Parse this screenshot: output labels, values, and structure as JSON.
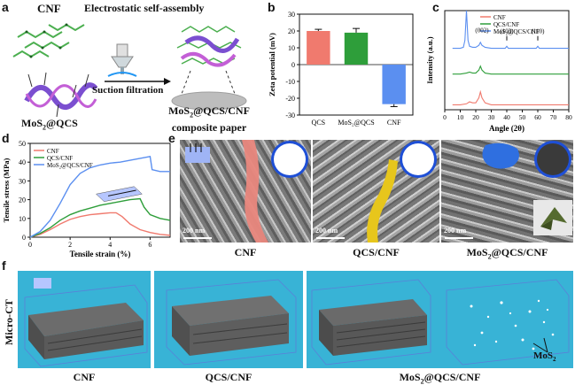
{
  "panels": {
    "a": {
      "label": "a",
      "cnf_label": "CNF",
      "title": "Electrostatic self-assembly",
      "process": "Suction filtration",
      "mos2_label_main": "MoS",
      "mos2_label_sub": "2",
      "mos2_label_tail": "@QCS",
      "product_line1_main": "MoS",
      "product_line1_sub": "2",
      "product_line1_tail": "@QCS/CNF",
      "product_line2": "composite paper"
    },
    "b": {
      "label": "b"
    },
    "c": {
      "label": "c"
    },
    "d": {
      "label": "d"
    },
    "e": {
      "label": "e",
      "scalebars": [
        "200 nm",
        "200 nm",
        "200 nm"
      ],
      "captions": [
        "CNF",
        "QCS/CNF",
        "MoS"
      ],
      "caption3_sub": "2",
      "caption3_tail": "@QCS/CNF"
    },
    "f": {
      "label": "f",
      "side_label": "Micro-CT",
      "captions": [
        "CNF",
        "QCS/CNF",
        "MoS"
      ],
      "caption3_sub": "2",
      "caption3_tail": "@QCS/CNF",
      "mos2_annot_main": "MoS",
      "mos2_annot_sub": "2"
    }
  },
  "colors": {
    "cnf": "#f07a6e",
    "qcs_cnf": "#2e9e3a",
    "mos2": "#5b8ff0",
    "ct_bg": "#38b3d6"
  },
  "chart_data": [
    {
      "type": "bar",
      "panel": "b",
      "categories": [
        "QCS",
        "MoS₂@QCS",
        "CNF"
      ],
      "values": [
        20,
        19,
        -23.5
      ],
      "errors": [
        1,
        2.5,
        1.5
      ],
      "ylabel": "Zeta potential (mV)",
      "ylim": [
        -30,
        30
      ],
      "yticks": [
        "30",
        "20",
        "10",
        "0",
        "-10",
        "-20",
        "-30"
      ]
    },
    {
      "type": "line",
      "panel": "c",
      "xlabel": "Angle (2θ)",
      "ylabel": "Intensity (a.u.)",
      "xlim": [
        0,
        80
      ],
      "xticks": [
        "0",
        "10",
        "20",
        "30",
        "40",
        "50",
        "60",
        "70",
        "80"
      ],
      "annotations": [
        "(002)",
        "(103)",
        "(110)"
      ],
      "series": [
        {
          "name": "CNF",
          "x": [
            5,
            10,
            14,
            16,
            18,
            20,
            22,
            23,
            24,
            26,
            30,
            40,
            50,
            60,
            70,
            80
          ],
          "y": [
            0.05,
            0.05,
            0.06,
            0.08,
            0.07,
            0.07,
            0.12,
            0.18,
            0.12,
            0.07,
            0.05,
            0.05,
            0.05,
            0.05,
            0.05,
            0.05
          ]
        },
        {
          "name": "QCS/CNF",
          "x": [
            5,
            10,
            14,
            16,
            18,
            20,
            22,
            23,
            24,
            26,
            30,
            40,
            50,
            60,
            70,
            80
          ],
          "y": [
            0.36,
            0.36,
            0.37,
            0.38,
            0.37,
            0.37,
            0.4,
            0.44,
            0.4,
            0.37,
            0.36,
            0.36,
            0.36,
            0.36,
            0.36,
            0.36
          ]
        },
        {
          "name": "MoS₂@QCS/CNF",
          "x": [
            5,
            10,
            12,
            13,
            14,
            15,
            16,
            18,
            20,
            22,
            23,
            24,
            26,
            30,
            39,
            40,
            41,
            50,
            59,
            60,
            61,
            70,
            80
          ],
          "y": [
            0.62,
            0.62,
            0.63,
            0.7,
            1.0,
            0.7,
            0.64,
            0.63,
            0.63,
            0.65,
            0.68,
            0.65,
            0.63,
            0.62,
            0.62,
            0.64,
            0.62,
            0.62,
            0.62,
            0.64,
            0.62,
            0.62,
            0.62
          ]
        }
      ]
    },
    {
      "type": "line",
      "panel": "d",
      "xlabel": "Tensile strain (%)",
      "ylabel": "Tensile stress (MPa)",
      "xlim": [
        0,
        7
      ],
      "ylim": [
        0,
        50
      ],
      "xticks": [
        "0",
        "2",
        "4",
        "6"
      ],
      "yticks": [
        "0",
        "10",
        "20",
        "30",
        "40",
        "50"
      ],
      "series": [
        {
          "name": "CNF",
          "x": [
            0,
            0.5,
            1.0,
            1.5,
            2,
            2.5,
            3,
            3.5,
            4,
            4.3,
            4.6,
            5,
            5.5,
            6,
            6.5,
            7
          ],
          "y": [
            0,
            1.5,
            4,
            7,
            9.5,
            11,
            12,
            12.5,
            13,
            13,
            11,
            7,
            4,
            2.5,
            1.5,
            1
          ]
        },
        {
          "name": "QCS/CNF",
          "x": [
            0,
            0.5,
            1.0,
            1.5,
            2,
            2.5,
            3,
            3.5,
            4,
            4.5,
            5,
            5.5,
            5.7,
            6,
            6.5,
            7
          ],
          "y": [
            0,
            2,
            5,
            9,
            12,
            14,
            15.5,
            17,
            18,
            19,
            20,
            20.5,
            16,
            12,
            10,
            9
          ]
        },
        {
          "name": "MoS₂@QCS/CNF",
          "x": [
            0,
            0.5,
            1.0,
            1.5,
            2,
            2.5,
            3,
            3.5,
            4,
            4.5,
            5,
            5.5,
            6.0,
            6.1,
            6.5,
            7
          ],
          "y": [
            0,
            3,
            9,
            18,
            28,
            34,
            37,
            38.5,
            39.5,
            40,
            41,
            42,
            43,
            36,
            35,
            35
          ]
        }
      ]
    }
  ]
}
